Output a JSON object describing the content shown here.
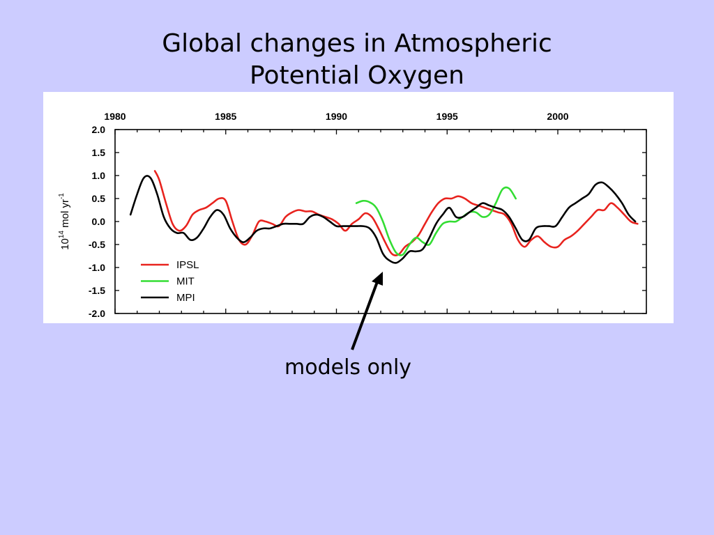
{
  "slide": {
    "title_line1": "Global changes in Atmospheric",
    "title_line2": "Potential Oxygen",
    "annotation": "models only"
  },
  "chart_data": {
    "type": "line",
    "title": "",
    "xlabel": "",
    "ylabel": "10^14 mol yr^-1",
    "ylabel_parts": {
      "base": "10",
      "exp1": "14",
      "mid": " mol yr",
      "exp2": "-1"
    },
    "xlim": [
      1980,
      2004
    ],
    "ylim": [
      -2.0,
      2.0
    ],
    "x_ticks": [
      1980,
      1985,
      1990,
      1995,
      2000
    ],
    "x_tick_labels": [
      "1980",
      "1985",
      "1990",
      "1995",
      "2000"
    ],
    "y_ticks": [
      2.0,
      1.5,
      1.0,
      0.5,
      0.0,
      -0.5,
      -1.0,
      -1.5,
      -2.0
    ],
    "y_tick_labels": [
      "2.0",
      "1.5",
      "1.0",
      "0.5",
      "0.0",
      "-0.5",
      "-1.0",
      "-1.5",
      "-2.0"
    ],
    "grid": false,
    "legend_position": "lower-left",
    "series": [
      {
        "name": "IPSL",
        "color": "#e8231e",
        "x": [
          1981.8,
          1982.0,
          1982.3,
          1982.6,
          1982.9,
          1983.2,
          1983.5,
          1983.8,
          1984.1,
          1984.4,
          1984.7,
          1985.0,
          1985.3,
          1985.6,
          1985.9,
          1986.2,
          1986.5,
          1986.8,
          1987.1,
          1987.4,
          1987.7,
          1988.0,
          1988.3,
          1988.6,
          1988.9,
          1989.2,
          1989.5,
          1989.8,
          1990.1,
          1990.4,
          1990.7,
          1991.0,
          1991.3,
          1991.6,
          1991.9,
          1992.2,
          1992.5,
          1992.8,
          1993.1,
          1993.4,
          1993.7,
          1994.0,
          1994.3,
          1994.6,
          1994.9,
          1995.2,
          1995.5,
          1995.8,
          1996.1,
          1996.4,
          1996.7,
          1997.0,
          1997.3,
          1997.6,
          1997.9,
          1998.2,
          1998.5,
          1998.8,
          1999.1,
          1999.4,
          1999.7,
          2000.0,
          2000.3,
          2000.6,
          2000.9,
          2001.2,
          2001.5,
          2001.8,
          2002.1,
          2002.4,
          2002.7,
          2003.0,
          2003.3,
          2003.6
        ],
        "values": [
          1.1,
          0.9,
          0.4,
          -0.05,
          -0.2,
          -0.1,
          0.15,
          0.25,
          0.3,
          0.4,
          0.5,
          0.45,
          0.0,
          -0.4,
          -0.5,
          -0.3,
          0.0,
          0.0,
          -0.05,
          -0.1,
          0.1,
          0.2,
          0.25,
          0.22,
          0.22,
          0.15,
          0.1,
          0.05,
          -0.05,
          -0.2,
          -0.05,
          0.05,
          0.18,
          0.1,
          -0.15,
          -0.45,
          -0.7,
          -0.72,
          -0.55,
          -0.45,
          -0.3,
          -0.05,
          0.2,
          0.4,
          0.5,
          0.5,
          0.55,
          0.5,
          0.4,
          0.35,
          0.3,
          0.25,
          0.2,
          0.15,
          -0.05,
          -0.4,
          -0.55,
          -0.4,
          -0.32,
          -0.45,
          -0.55,
          -0.55,
          -0.4,
          -0.32,
          -0.2,
          -0.05,
          0.1,
          0.25,
          0.25,
          0.4,
          0.3,
          0.15,
          0.0,
          -0.05
        ],
        "values_note": "same length as x"
      },
      {
        "name": "MIT",
        "color": "#33dd33",
        "x": [
          1990.9,
          1991.2,
          1991.5,
          1991.8,
          1992.1,
          1992.4,
          1992.7,
          1993.0,
          1993.3,
          1993.6,
          1993.9,
          1994.2,
          1994.5,
          1994.8,
          1995.1,
          1995.4,
          1995.7,
          1996.0,
          1996.3,
          1996.6,
          1996.9,
          1997.2,
          1997.5,
          1997.8,
          1998.1
        ],
        "values": [
          0.4,
          0.45,
          0.42,
          0.3,
          0.0,
          -0.4,
          -0.68,
          -0.72,
          -0.5,
          -0.35,
          -0.45,
          -0.5,
          -0.25,
          -0.05,
          0.0,
          0.0,
          0.1,
          0.2,
          0.2,
          0.1,
          0.15,
          0.4,
          0.7,
          0.72,
          0.5
        ]
      },
      {
        "name": "MPI",
        "color": "#000000",
        "x": [
          1980.7,
          1981.0,
          1981.3,
          1981.6,
          1981.9,
          1982.2,
          1982.5,
          1982.8,
          1983.1,
          1983.4,
          1983.7,
          1984.0,
          1984.3,
          1984.6,
          1984.9,
          1985.2,
          1985.5,
          1985.8,
          1986.1,
          1986.4,
          1986.7,
          1987.0,
          1987.3,
          1987.6,
          1987.9,
          1988.2,
          1988.5,
          1988.8,
          1989.1,
          1989.4,
          1989.7,
          1990.0,
          1990.3,
          1990.6,
          1990.9,
          1991.2,
          1991.5,
          1991.8,
          1992.1,
          1992.4,
          1992.7,
          1993.0,
          1993.3,
          1993.6,
          1993.9,
          1994.2,
          1994.5,
          1994.8,
          1995.1,
          1995.4,
          1995.7,
          1996.0,
          1996.3,
          1996.6,
          1996.9,
          1997.2,
          1997.5,
          1997.8,
          1998.1,
          1998.4,
          1998.7,
          1999.0,
          1999.3,
          1999.6,
          1999.9,
          2000.2,
          2000.5,
          2000.8,
          2001.1,
          2001.4,
          2001.7,
          2002.0,
          2002.3,
          2002.6,
          2002.9,
          2003.2,
          2003.5
        ],
        "values": [
          0.15,
          0.6,
          0.95,
          0.95,
          0.6,
          0.1,
          -0.15,
          -0.25,
          -0.25,
          -0.4,
          -0.35,
          -0.15,
          0.1,
          0.25,
          0.15,
          -0.15,
          -0.35,
          -0.45,
          -0.35,
          -0.2,
          -0.15,
          -0.15,
          -0.1,
          -0.05,
          -0.05,
          -0.05,
          -0.05,
          0.1,
          0.15,
          0.1,
          0.0,
          -0.1,
          -0.1,
          -0.1,
          -0.1,
          -0.1,
          -0.15,
          -0.35,
          -0.7,
          -0.85,
          -0.9,
          -0.8,
          -0.65,
          -0.65,
          -0.6,
          -0.35,
          -0.05,
          0.15,
          0.3,
          0.1,
          0.1,
          0.2,
          0.3,
          0.4,
          0.35,
          0.3,
          0.25,
          0.1,
          -0.15,
          -0.4,
          -0.4,
          -0.15,
          -0.1,
          -0.1,
          -0.1,
          0.1,
          0.3,
          0.4,
          0.5,
          0.6,
          0.8,
          0.85,
          0.75,
          0.6,
          0.4,
          0.15,
          0.0
        ]
      }
    ]
  }
}
